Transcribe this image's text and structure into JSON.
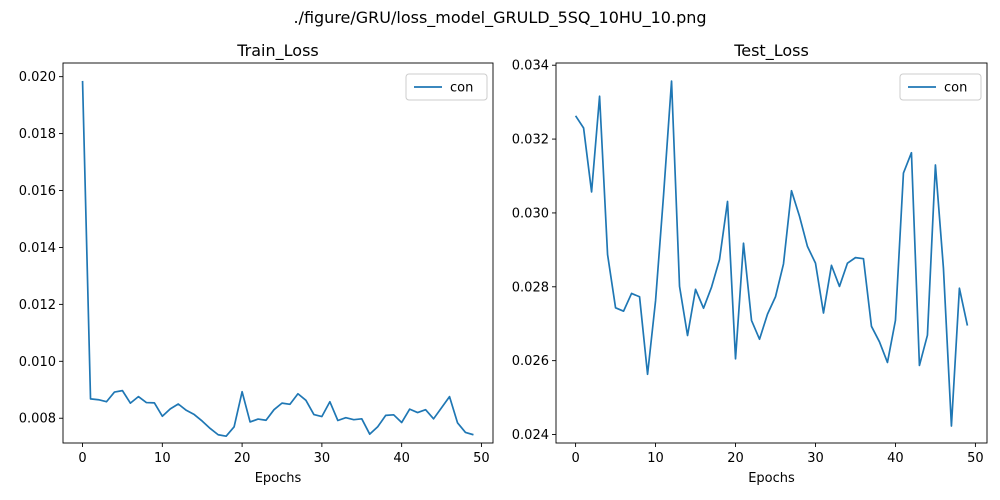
{
  "figure_title": "./figure/GRU/loss_model_GRULD_5SQ_10HU_10.png",
  "colors": {
    "series": "#1f77b4",
    "axes": "#000000",
    "legend_border": "#cccccc"
  },
  "chart_data": [
    {
      "type": "line",
      "title": "Train_Loss",
      "xlabel": "Epochs",
      "ylabel": "",
      "xlim": [
        -2.45,
        51.45
      ],
      "ylim": [
        0.00713,
        0.02048
      ],
      "xticks": [
        0,
        10,
        20,
        30,
        40,
        50
      ],
      "yticks": [
        0.008,
        0.01,
        0.012,
        0.014,
        0.016,
        0.018,
        0.02
      ],
      "ytick_labels": [
        "0.008",
        "0.010",
        "0.012",
        "0.014",
        "0.016",
        "0.018",
        "0.020"
      ],
      "grid": false,
      "legend": "top-right",
      "series": [
        {
          "name": "con",
          "x": [
            0,
            1,
            2,
            3,
            4,
            5,
            6,
            7,
            8,
            9,
            10,
            11,
            12,
            13,
            14,
            15,
            16,
            17,
            18,
            19,
            20,
            21,
            22,
            23,
            24,
            25,
            26,
            27,
            28,
            29,
            30,
            31,
            32,
            33,
            34,
            35,
            36,
            37,
            38,
            39,
            40,
            41,
            42,
            43,
            44,
            45,
            46,
            47,
            48,
            49
          ],
          "y": [
            0.01985,
            0.00868,
            0.00865,
            0.00858,
            0.00892,
            0.00897,
            0.00853,
            0.00876,
            0.00855,
            0.00854,
            0.00807,
            0.00833,
            0.0085,
            0.00828,
            0.00813,
            0.0079,
            0.00764,
            0.00742,
            0.00737,
            0.0077,
            0.00893,
            0.00787,
            0.00797,
            0.00793,
            0.0083,
            0.00853,
            0.00849,
            0.00886,
            0.00863,
            0.00813,
            0.00806,
            0.00858,
            0.00792,
            0.00802,
            0.00795,
            0.00798,
            0.00744,
            0.0077,
            0.0081,
            0.00812,
            0.00785,
            0.00832,
            0.0082,
            0.0083,
            0.00798,
            0.00837,
            0.00876,
            0.00784,
            0.0075,
            0.00742
          ]
        }
      ]
    },
    {
      "type": "line",
      "title": "Test_Loss",
      "xlabel": "Epochs",
      "ylabel": "",
      "xlim": [
        -2.45,
        51.45
      ],
      "ylim": [
        0.02377,
        0.03406
      ],
      "xticks": [
        0,
        10,
        20,
        30,
        40,
        50
      ],
      "yticks": [
        0.024,
        0.026,
        0.028,
        0.03,
        0.032,
        0.034
      ],
      "ytick_labels": [
        "0.024",
        "0.026",
        "0.028",
        "0.030",
        "0.032",
        "0.034"
      ],
      "grid": false,
      "legend": "top-right",
      "series": [
        {
          "name": "con",
          "x": [
            0,
            1,
            2,
            3,
            4,
            5,
            6,
            7,
            8,
            9,
            10,
            11,
            12,
            13,
            14,
            15,
            16,
            17,
            18,
            19,
            20,
            21,
            22,
            23,
            24,
            25,
            26,
            27,
            28,
            29,
            30,
            31,
            32,
            33,
            34,
            35,
            36,
            37,
            38,
            39,
            40,
            41,
            42,
            43,
            44,
            45,
            46,
            47,
            48,
            49
          ],
          "y": [
            0.03263,
            0.0323,
            0.03057,
            0.03316,
            0.02887,
            0.02743,
            0.02734,
            0.02782,
            0.02773,
            0.02563,
            0.02762,
            0.03048,
            0.03357,
            0.02801,
            0.02668,
            0.02793,
            0.02742,
            0.02799,
            0.02874,
            0.03031,
            0.02605,
            0.02918,
            0.02709,
            0.02658,
            0.02726,
            0.02773,
            0.02862,
            0.0306,
            0.02991,
            0.02909,
            0.02864,
            0.02729,
            0.02858,
            0.02801,
            0.02864,
            0.02879,
            0.02876,
            0.02693,
            0.02651,
            0.02595,
            0.02709,
            0.03108,
            0.03163,
            0.02587,
            0.02669,
            0.0313,
            0.02851,
            0.02423,
            0.02796,
            0.02695
          ]
        }
      ]
    }
  ]
}
